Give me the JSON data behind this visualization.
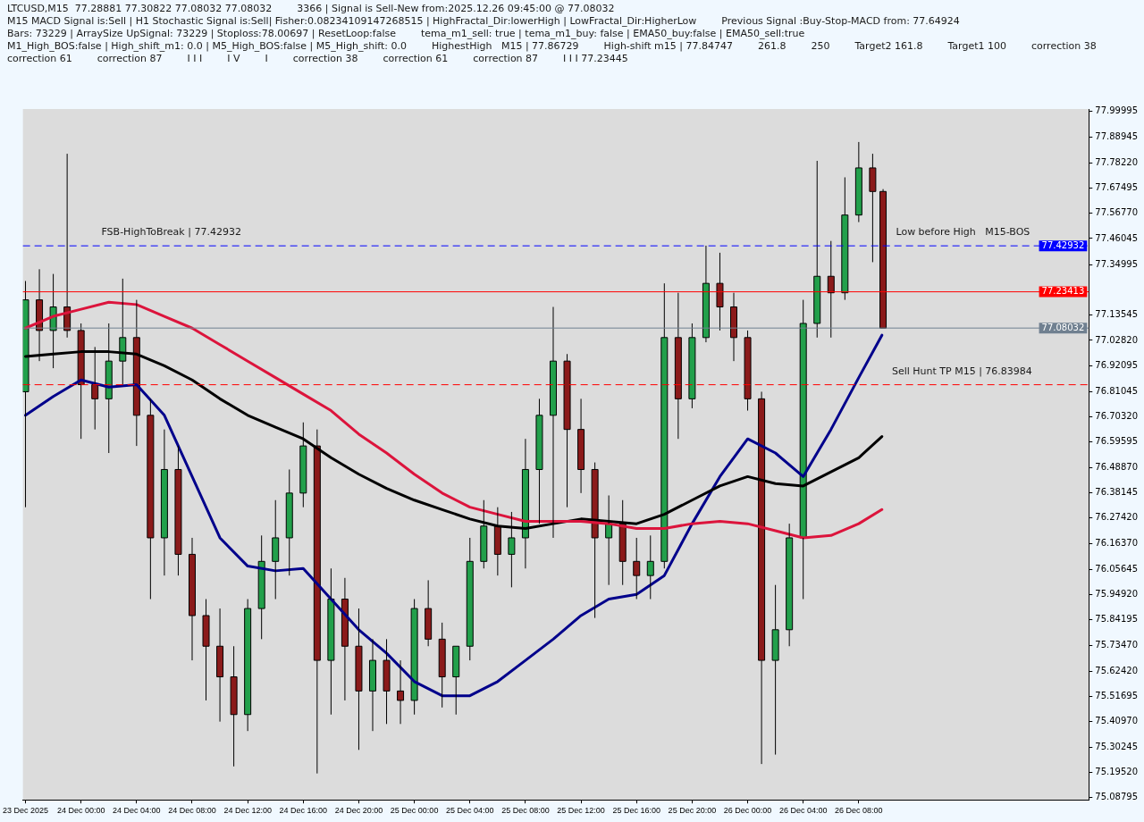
{
  "chart_data": {
    "type": "candlestick",
    "x": [
      "2025-12-23T20:00",
      "2025-12-23T21:00",
      "2025-12-23T22:00",
      "2025-12-23T23:00",
      "2025-12-24T00:00",
      "2025-12-24T01:00",
      "2025-12-24T02:00",
      "2025-12-24T03:00",
      "2025-12-24T04:00",
      "2025-12-24T05:00",
      "2025-12-24T06:00",
      "2025-12-24T07:00",
      "2025-12-24T08:00",
      "2025-12-24T09:00",
      "2025-12-24T10:00",
      "2025-12-24T11:00",
      "2025-12-24T12:00",
      "2025-12-24T13:00",
      "2025-12-24T14:00",
      "2025-12-24T15:00",
      "2025-12-24T16:00",
      "2025-12-24T17:00",
      "2025-12-24T18:00",
      "2025-12-24T19:00",
      "2025-12-24T20:00",
      "2025-12-24T21:00",
      "2025-12-24T22:00",
      "2025-12-24T23:00",
      "2025-12-25T00:00",
      "2025-12-25T01:00",
      "2025-12-25T02:00",
      "2025-12-25T03:00",
      "2025-12-25T04:00",
      "2025-12-25T05:00",
      "2025-12-25T06:00",
      "2025-12-25T07:00",
      "2025-12-25T08:00",
      "2025-12-25T09:00",
      "2025-12-25T10:00",
      "2025-12-25T11:00",
      "2025-12-25T12:00",
      "2025-12-25T13:00",
      "2025-12-25T14:00",
      "2025-12-25T15:00",
      "2025-12-25T16:00",
      "2025-12-25T17:00",
      "2025-12-25T18:00",
      "2025-12-25T19:00",
      "2025-12-25T20:00",
      "2025-12-25T21:00",
      "2025-12-25T22:00",
      "2025-12-25T23:00",
      "2025-12-26T00:00",
      "2025-12-26T01:00",
      "2025-12-26T02:00",
      "2025-12-26T03:00",
      "2025-12-26T04:00",
      "2025-12-26T05:00",
      "2025-12-26T06:00",
      "2025-12-26T07:00",
      "2025-12-26T08:00",
      "2025-12-26T09:00",
      "2025-12-26T09:45"
    ],
    "ohlc": [
      [
        76.81,
        77.28,
        76.32,
        77.2
      ],
      [
        77.2,
        77.33,
        76.94,
        77.07
      ],
      [
        77.07,
        77.31,
        76.91,
        77.17
      ],
      [
        77.17,
        77.82,
        77.04,
        77.07
      ],
      [
        77.07,
        77.1,
        76.61,
        76.84
      ],
      [
        76.84,
        77.0,
        76.65,
        76.78
      ],
      [
        76.78,
        77.1,
        76.55,
        76.94
      ],
      [
        76.94,
        77.29,
        76.84,
        77.04
      ],
      [
        77.04,
        77.2,
        76.58,
        76.71
      ],
      [
        76.71,
        76.78,
        75.93,
        76.19
      ],
      [
        76.19,
        76.65,
        76.03,
        76.48
      ],
      [
        76.48,
        76.58,
        76.03,
        76.12
      ],
      [
        76.12,
        76.19,
        75.67,
        75.86
      ],
      [
        75.86,
        75.93,
        75.5,
        75.73
      ],
      [
        75.73,
        75.89,
        75.41,
        75.6
      ],
      [
        75.6,
        75.73,
        75.22,
        75.44
      ],
      [
        75.44,
        75.93,
        75.37,
        75.89
      ],
      [
        75.89,
        76.2,
        75.76,
        76.09
      ],
      [
        76.09,
        76.35,
        75.93,
        76.19
      ],
      [
        76.19,
        76.48,
        76.03,
        76.38
      ],
      [
        76.38,
        76.68,
        76.32,
        76.58
      ],
      [
        76.58,
        76.65,
        75.19,
        75.67
      ],
      [
        75.67,
        76.06,
        75.44,
        75.93
      ],
      [
        75.93,
        76.02,
        75.5,
        75.73
      ],
      [
        75.73,
        75.89,
        75.29,
        75.54
      ],
      [
        75.54,
        75.76,
        75.37,
        75.67
      ],
      [
        75.67,
        75.76,
        75.4,
        75.54
      ],
      [
        75.54,
        75.67,
        75.4,
        75.5
      ],
      [
        75.5,
        75.93,
        75.44,
        75.89
      ],
      [
        75.89,
        76.01,
        75.73,
        75.76
      ],
      [
        75.76,
        75.83,
        75.47,
        75.6
      ],
      [
        75.6,
        75.73,
        75.44,
        75.73
      ],
      [
        75.73,
        76.19,
        75.67,
        76.09
      ],
      [
        76.09,
        76.35,
        76.06,
        76.24
      ],
      [
        76.24,
        76.32,
        76.03,
        76.12
      ],
      [
        76.12,
        76.3,
        75.98,
        76.19
      ],
      [
        76.19,
        76.61,
        76.06,
        76.48
      ],
      [
        76.48,
        76.78,
        76.25,
        76.71
      ],
      [
        76.71,
        77.17,
        76.19,
        76.94
      ],
      [
        76.94,
        76.97,
        76.32,
        76.65
      ],
      [
        76.65,
        76.78,
        76.38,
        76.48
      ],
      [
        76.48,
        76.51,
        75.85,
        76.19
      ],
      [
        76.19,
        76.37,
        75.99,
        76.25
      ],
      [
        76.25,
        76.35,
        75.99,
        76.09
      ],
      [
        76.09,
        76.19,
        75.93,
        76.03
      ],
      [
        76.03,
        76.2,
        75.93,
        76.09
      ],
      [
        76.09,
        77.27,
        76.06,
        77.04
      ],
      [
        77.04,
        77.23,
        76.61,
        76.78
      ],
      [
        76.78,
        77.1,
        76.74,
        77.04
      ],
      [
        77.04,
        77.43,
        77.02,
        77.27
      ],
      [
        77.27,
        77.4,
        77.07,
        77.17
      ],
      [
        77.17,
        77.23,
        76.94,
        77.04
      ],
      [
        77.04,
        77.07,
        76.73,
        76.78
      ],
      [
        76.78,
        76.81,
        75.23,
        75.67
      ],
      [
        75.67,
        75.99,
        75.27,
        75.8
      ],
      [
        75.8,
        76.25,
        75.73,
        76.19
      ],
      [
        76.19,
        77.2,
        75.93,
        77.1
      ],
      [
        77.1,
        77.79,
        77.04,
        77.3
      ],
      [
        77.3,
        77.45,
        77.04,
        77.23
      ],
      [
        77.23,
        77.72,
        77.2,
        77.56
      ],
      [
        77.56,
        77.87,
        77.53,
        77.76
      ],
      [
        77.76,
        77.82,
        77.36,
        77.66
      ],
      [
        77.66,
        77.67,
        77.08,
        77.08
      ]
    ],
    "colors": [
      "#22a04b",
      "#8b1a1a",
      "#22a04b",
      "#8b1a1a",
      "#8b1a1a",
      "#8b1a1a",
      "#22a04b",
      "#22a04b",
      "#8b1a1a",
      "#8b1a1a",
      "#22a04b",
      "#8b1a1a",
      "#8b1a1a",
      "#8b1a1a",
      "#8b1a1a",
      "#8b1a1a",
      "#22a04b",
      "#22a04b",
      "#22a04b",
      "#22a04b",
      "#22a04b",
      "#8b1a1a",
      "#22a04b",
      "#8b1a1a",
      "#8b1a1a",
      "#22a04b",
      "#8b1a1a",
      "#8b1a1a",
      "#22a04b",
      "#8b1a1a",
      "#8b1a1a",
      "#22a04b",
      "#22a04b",
      "#22a04b",
      "#8b1a1a",
      "#22a04b",
      "#22a04b",
      "#22a04b",
      "#22a04b",
      "#8b1a1a",
      "#8b1a1a",
      "#8b1a1a",
      "#22a04b",
      "#8b1a1a",
      "#8b1a1a",
      "#22a04b",
      "#22a04b",
      "#8b1a1a",
      "#22a04b",
      "#22a04b",
      "#8b1a1a",
      "#8b1a1a",
      "#8b1a1a",
      "#8b1a1a",
      "#22a04b",
      "#22a04b",
      "#22a04b",
      "#22a04b",
      "#8b1a1a",
      "#22a04b",
      "#22a04b",
      "#8b1a1a",
      "#8b1a1a"
    ],
    "series": [
      {
        "type": "line",
        "color": "#dc143c",
        "x": [
          "2025-12-23T20:00",
          "2025-12-23T22:00",
          "2025-12-24T00:00",
          "2025-12-24T02:00",
          "2025-12-24T04:00",
          "2025-12-24T06:00",
          "2025-12-24T08:00",
          "2025-12-24T10:00",
          "2025-12-24T12:00",
          "2025-12-24T14:00",
          "2025-12-24T16:00",
          "2025-12-24T18:00",
          "2025-12-24T20:00",
          "2025-12-24T22:00",
          "2025-12-25T00:00",
          "2025-12-25T02:00",
          "2025-12-25T04:00",
          "2025-12-25T06:00",
          "2025-12-25T08:00",
          "2025-12-25T10:00",
          "2025-12-25T12:00",
          "2025-12-25T14:00",
          "2025-12-25T16:00",
          "2025-12-25T18:00",
          "2025-12-25T20:00",
          "2025-12-25T22:00",
          "2025-12-26T00:00",
          "2025-12-26T02:00",
          "2025-12-26T04:00",
          "2025-12-26T06:00",
          "2025-12-26T08:00",
          "2025-12-26T09:40"
        ],
        "values": [
          77.08,
          77.13,
          77.16,
          77.19,
          77.18,
          77.13,
          77.08,
          77.01,
          76.94,
          76.87,
          76.8,
          76.73,
          76.63,
          76.55,
          76.46,
          76.38,
          76.32,
          76.29,
          76.26,
          76.26,
          76.26,
          76.25,
          76.23,
          76.23,
          76.25,
          76.26,
          76.25,
          76.22,
          76.19,
          76.2,
          76.25,
          76.31
        ]
      },
      {
        "type": "line",
        "color": "#000000",
        "x": [
          "2025-12-23T20:00",
          "2025-12-23T22:00",
          "2025-12-24T00:00",
          "2025-12-24T02:00",
          "2025-12-24T04:00",
          "2025-12-24T06:00",
          "2025-12-24T08:00",
          "2025-12-24T10:00",
          "2025-12-24T12:00",
          "2025-12-24T14:00",
          "2025-12-24T16:00",
          "2025-12-24T18:00",
          "2025-12-24T20:00",
          "2025-12-24T22:00",
          "2025-12-25T00:00",
          "2025-12-25T02:00",
          "2025-12-25T04:00",
          "2025-12-25T06:00",
          "2025-12-25T08:00",
          "2025-12-25T10:00",
          "2025-12-25T12:00",
          "2025-12-25T14:00",
          "2025-12-25T16:00",
          "2025-12-25T18:00",
          "2025-12-25T20:00",
          "2025-12-25T22:00",
          "2025-12-26T00:00",
          "2025-12-26T02:00",
          "2025-12-26T04:00",
          "2025-12-26T06:00",
          "2025-12-26T08:00",
          "2025-12-26T09:40"
        ],
        "values": [
          76.96,
          76.97,
          76.98,
          76.98,
          76.97,
          76.92,
          76.86,
          76.78,
          76.71,
          76.66,
          76.61,
          76.53,
          76.46,
          76.4,
          76.35,
          76.31,
          76.27,
          76.24,
          76.23,
          76.25,
          76.27,
          76.26,
          76.25,
          76.29,
          76.35,
          76.41,
          76.45,
          76.42,
          76.41,
          76.47,
          76.53,
          76.62
        ]
      },
      {
        "type": "line",
        "color": "#00008b",
        "x": [
          "2025-12-23T20:00",
          "2025-12-23T22:00",
          "2025-12-24T00:00",
          "2025-12-24T02:00",
          "2025-12-24T04:00",
          "2025-12-24T06:00",
          "2025-12-24T08:00",
          "2025-12-24T10:00",
          "2025-12-24T12:00",
          "2025-12-24T14:00",
          "2025-12-24T16:00",
          "2025-12-24T18:00",
          "2025-12-24T20:00",
          "2025-12-24T22:00",
          "2025-12-25T00:00",
          "2025-12-25T02:00",
          "2025-12-25T04:00",
          "2025-12-25T06:00",
          "2025-12-25T08:00",
          "2025-12-25T10:00",
          "2025-12-25T12:00",
          "2025-12-25T14:00",
          "2025-12-25T16:00",
          "2025-12-25T18:00",
          "2025-12-25T20:00",
          "2025-12-25T22:00",
          "2025-12-26T00:00",
          "2025-12-26T02:00",
          "2025-12-26T04:00",
          "2025-12-26T06:00",
          "2025-12-26T08:00",
          "2025-12-26T09:40"
        ],
        "values": [
          76.71,
          76.79,
          76.86,
          76.83,
          76.84,
          76.71,
          76.45,
          76.19,
          76.07,
          76.05,
          76.06,
          75.93,
          75.8,
          75.7,
          75.58,
          75.52,
          75.52,
          75.58,
          75.67,
          75.76,
          75.86,
          75.93,
          75.95,
          76.03,
          76.25,
          76.45,
          76.61,
          76.55,
          76.45,
          76.65,
          76.87,
          77.05
        ]
      }
    ],
    "ref_lines": [
      {
        "axis": "y",
        "value": 77.42932,
        "label": "77.42932",
        "color": "#0000ff",
        "line_style": "dashed"
      },
      {
        "axis": "y",
        "value": 77.23413,
        "label": "77.23413",
        "color": "#ff0000",
        "line_style": "solid"
      },
      {
        "axis": "y",
        "value": 77.08032,
        "label": "77.08032",
        "color": "#708090",
        "line_style": "solid"
      },
      {
        "axis": "y",
        "value": 76.83984,
        "color": "#ff0000",
        "line_style": "dashed"
      }
    ],
    "annotations": [
      "LTCUSD,M15  77.28881 77.30822 77.08032 77.08032",
      "3366 | Signal is Sell-New from:2025.12.26 09:45:00 @ 77.08032",
      "M15 MACD Signal is:Sell | H1 Stochastic Signal is:Sell| Fisher:0.08234109147268515 | HighFractal_Dir:lowerHigh | LowFractal_Dir:HigherLow",
      "Previous Signal :Buy-Stop-MACD from: 77.64924",
      "Bars: 73229 | ArraySize UpSignal: 73229 | Stoploss:78.00697 | ResetLoop:false",
      "tema_m1_sell: true | tema_m1_buy: false | EMA50_buy:false | EMA50_sell:true",
      "M1_High_BOS:false | High_shift_m1: 0.0 | M5_High_BOS:false | M5_High_shift: 0.0",
      "HighestHigh   M15 | 77.86729",
      "High-shift m15 | 77.84747",
      "261.8",
      "250",
      "Target2 161.8",
      "Target1 100",
      "correction 38",
      "correction 61",
      "correction 87",
      "I I I",
      "I V",
      "I",
      "correction 38",
      "correction 61",
      "correction 87",
      "I I I 77.23445",
      {
        "text": "FSB-HighToBreak | 77.42932",
        "x": "2025-12-24T06:30",
        "y": 77.42932
      },
      {
        "text": "Low before High   M15-BOS",
        "x": "2025-12-26T15:30",
        "y": 77.42932
      },
      {
        "text": "Sell Hunt TP M15 | 76.83984",
        "x": "2025-12-26T15:26",
        "y": 76.83984
      }
    ],
    "xlim": [
      "2025-12-23T19:49",
      "2025-12-27T00:34"
    ],
    "xticks": [
      {
        "value": "2025-12-23T20:00",
        "label": "23 Dec 2025"
      },
      {
        "value": "2025-12-24T00:00",
        "label": "24 Dec 00:00"
      },
      {
        "value": "2025-12-24T04:00",
        "label": "24 Dec 04:00"
      },
      {
        "value": "2025-12-24T08:00",
        "label": "24 Dec 08:00"
      },
      {
        "value": "2025-12-24T12:00",
        "label": "24 Dec 12:00"
      },
      {
        "value": "2025-12-24T16:00",
        "label": "24 Dec 16:00"
      },
      {
        "value": "2025-12-24T20:00",
        "label": "24 Dec 20:00"
      },
      {
        "value": "2025-12-25T00:00",
        "label": "25 Dec 00:00"
      },
      {
        "value": "2025-12-25T04:00",
        "label": "25 Dec 04:00"
      },
      {
        "value": "2025-12-25T08:00",
        "label": "25 Dec 08:00"
      },
      {
        "value": "2025-12-25T12:00",
        "label": "25 Dec 12:00"
      },
      {
        "value": "2025-12-25T16:00",
        "label": "25 Dec 16:00"
      },
      {
        "value": "2025-12-25T20:00",
        "label": "25 Dec 20:00"
      },
      {
        "value": "2025-12-26T00:00",
        "label": "26 Dec 00:00"
      },
      {
        "value": "2025-12-26T04:00",
        "label": "26 Dec 04:00"
      },
      {
        "value": "2025-12-26T08:00",
        "label": "26 Dec 08:00"
      }
    ],
    "ylim": [
      75.078,
      78.01
    ],
    "yticks": [
      77.99995,
      77.88945,
      {
        "value": 77.7822,
        "label": "77.78220"
      },
      77.67495,
      {
        "value": 77.5677,
        "label": "77.56770"
      },
      77.46045,
      77.34995,
      77.13545,
      {
        "value": 77.0282,
        "label": "77.02820"
      },
      76.92095,
      76.81045,
      {
        "value": 76.7032,
        "label": "76.70320"
      },
      76.59595,
      {
        "value": 76.4887,
        "label": "76.48870"
      },
      76.38145,
      {
        "value": 76.2742,
        "label": "76.27420"
      },
      {
        "value": 76.1637,
        "label": "76.16370"
      },
      76.05645,
      {
        "value": 75.9492,
        "label": "75.94920"
      },
      75.84195,
      {
        "value": 75.7347,
        "label": "75.73470"
      },
      {
        "value": 75.6242,
        "label": "75.62420"
      },
      75.51695,
      {
        "value": 75.4097,
        "label": "75.40970"
      },
      75.30245,
      {
        "value": 75.1952,
        "label": "75.19520"
      },
      75.08795
    ]
  }
}
